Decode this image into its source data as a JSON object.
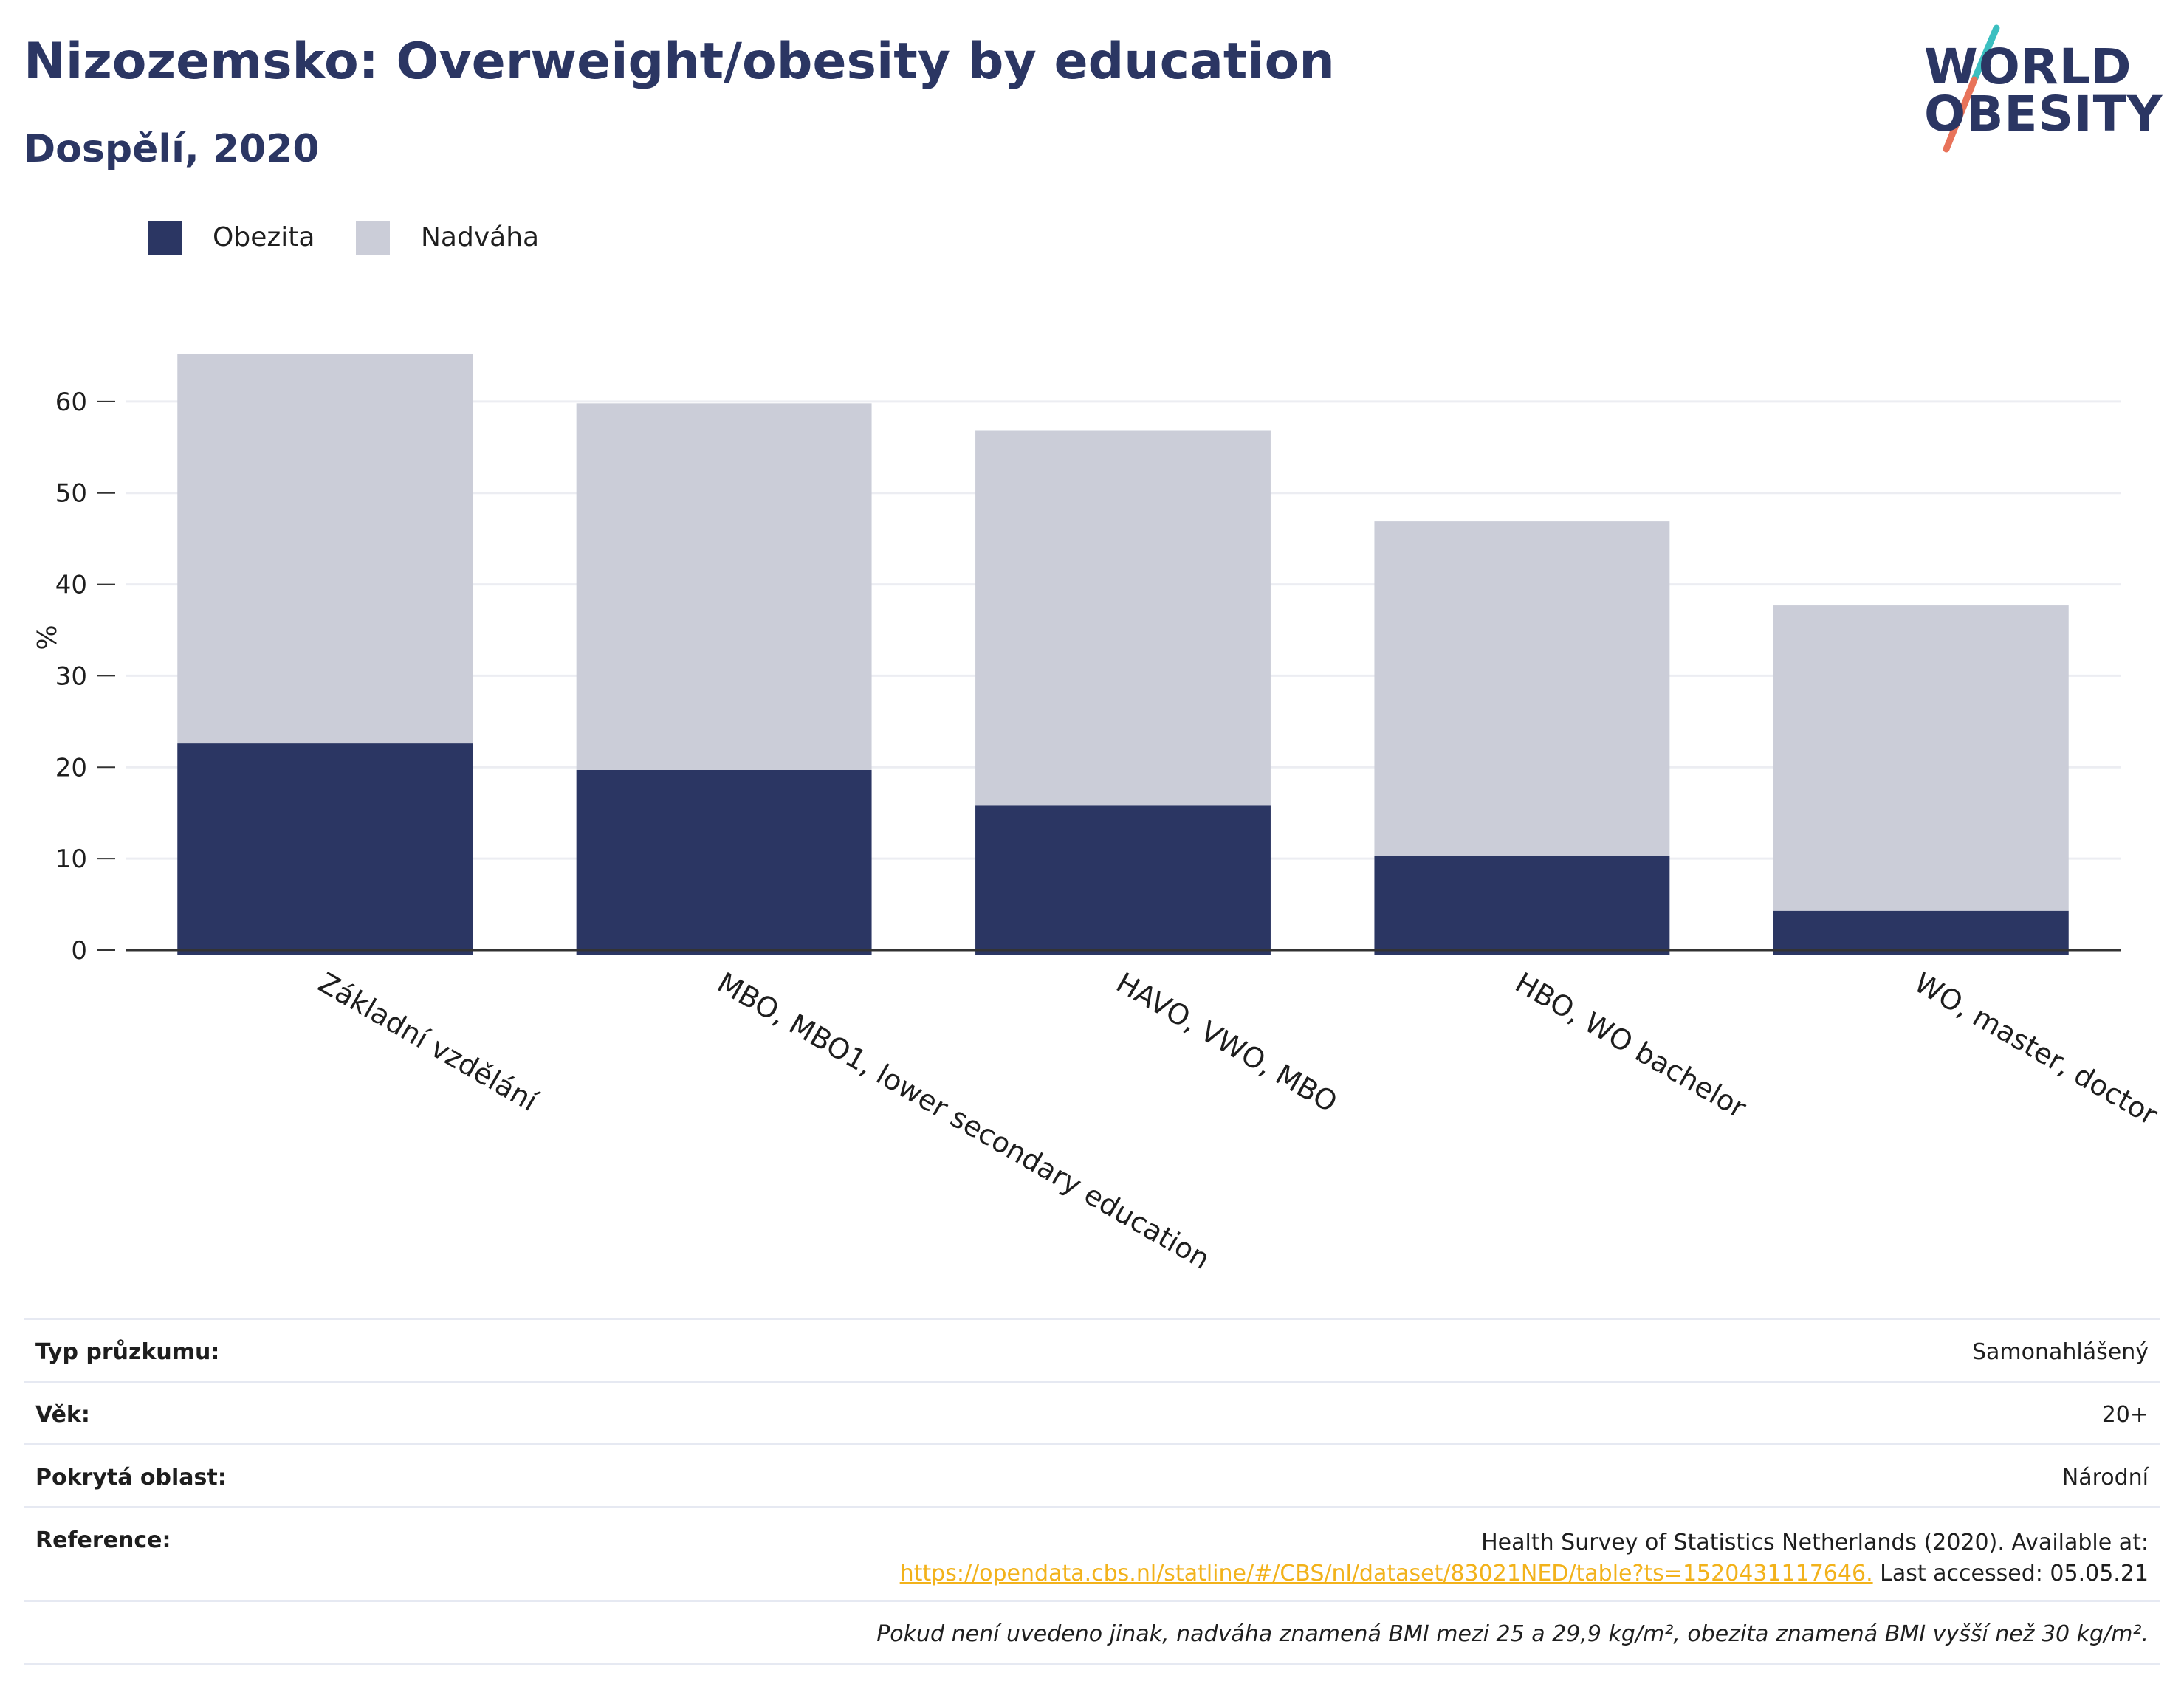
{
  "header": {
    "title": "Nizozemsko: Overweight/obesity by education",
    "subtitle": "Dospělí, 2020"
  },
  "logo": {
    "line1": "WORLD",
    "line2": "OBESITY",
    "colors": {
      "text": "#2b3663",
      "slash_top": "#3bbfc0",
      "slash_bottom": "#e8735a"
    }
  },
  "colors": {
    "obesity": "#2b3663",
    "overweight": "#cbcdd8",
    "grid": "#ecedf2",
    "axis": "#333333"
  },
  "chart_data": {
    "type": "bar",
    "stacked": true,
    "categories": [
      "Základní vzdělání",
      "MBO, MBO1, lower secondary education",
      "HAVO, VWO, MBO",
      "HBO, WO bachelor",
      "WO, master, doctor"
    ],
    "series": [
      {
        "name": "Obezita",
        "values": [
          22.6,
          19.7,
          15.8,
          10.3,
          4.3
        ]
      },
      {
        "name": "Nadváha",
        "values": [
          42.6,
          40.1,
          41.0,
          36.6,
          33.4
        ]
      }
    ],
    "ylabel": "%",
    "xlabel": "",
    "ylim": [
      0,
      70
    ],
    "yticks": [
      0,
      10,
      20,
      30,
      40,
      50,
      60
    ],
    "grid": true,
    "legend_position": "top-left"
  },
  "info": {
    "survey_type_label": "Typ průzkumu:",
    "survey_type_value": "Samonahlášený",
    "age_label": "Věk:",
    "age_value": "20+",
    "coverage_label": "Pokrytá oblast:",
    "coverage_value": "Národní",
    "reference_label": "Reference:",
    "reference_line1": "Health Survey of Statistics Netherlands (2020). Available at:",
    "reference_link": "https://opendata.cbs.nl/statline/#/CBS/nl/dataset/83021NED/table?ts=1520431117646.",
    "reference_accessed": " Last accessed: 05.05.21",
    "note": "Pokud není uvedeno jinak, nadváha znamená BMI mezi 25 a 29,9 kg/m², obezita znamená BMI vyšší než 30 kg/m²."
  }
}
